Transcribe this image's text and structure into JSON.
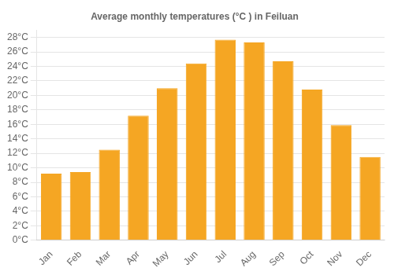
{
  "chart_data": {
    "type": "bar",
    "title": "Average monthly temperatures (°C ) in Feiluan",
    "categories": [
      "Jan",
      "Feb",
      "Mar",
      "Apr",
      "May",
      "Jun",
      "Jul",
      "Aug",
      "Sep",
      "Oct",
      "Nov",
      "Dec"
    ],
    "values": [
      9.2,
      9.4,
      12.5,
      17.2,
      21.0,
      24.4,
      27.7,
      27.3,
      24.7,
      20.8,
      15.9,
      11.5
    ],
    "color": "#F5A623",
    "ylim": [
      0,
      29
    ],
    "yticks": [
      {
        "value": 0,
        "label": "0°C"
      },
      {
        "value": 2,
        "label": "2°C"
      },
      {
        "value": 4,
        "label": "4°C"
      },
      {
        "value": 6,
        "label": "6°C"
      },
      {
        "value": 8,
        "label": "8°C"
      },
      {
        "value": 10,
        "label": "10°C"
      },
      {
        "value": 12,
        "label": "12°C"
      },
      {
        "value": 14,
        "label": "14°C"
      },
      {
        "value": 16,
        "label": "16°C"
      },
      {
        "value": 18,
        "label": "18°C"
      },
      {
        "value": 20,
        "label": "20°C"
      },
      {
        "value": 22,
        "label": "22°C"
      },
      {
        "value": 24,
        "label": "24°C"
      },
      {
        "value": 26,
        "label": "26°C"
      },
      {
        "value": 28,
        "label": "28°C"
      }
    ],
    "grid": true
  }
}
